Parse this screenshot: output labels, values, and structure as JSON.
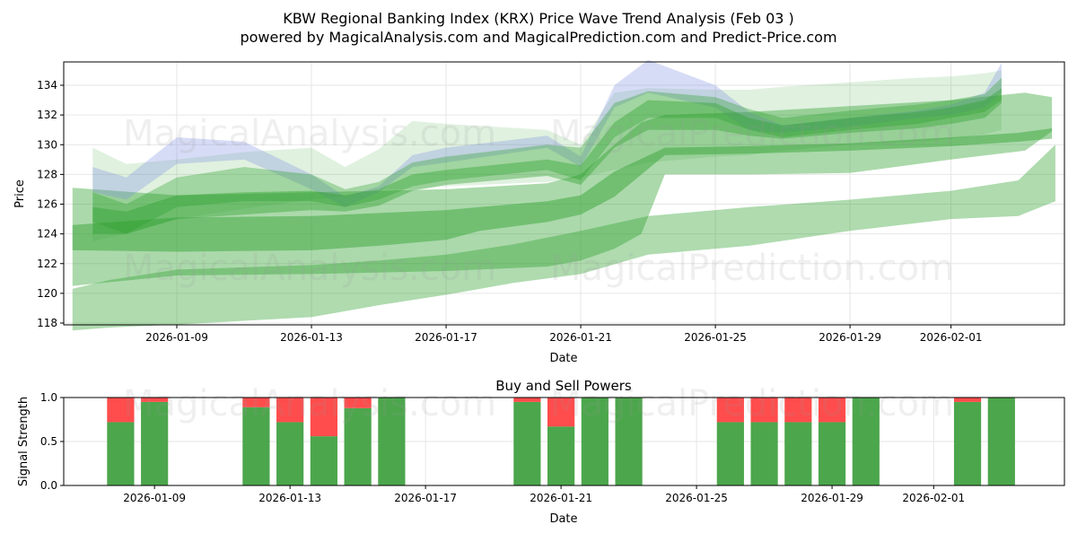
{
  "title_line1": "KBW Regional Banking Index (KRX) Price Wave Trend Analysis (Feb 03 )",
  "title_line2": "powered by MagicalAnalysis.com and MagicalPrediction.com and Predict-Price.com",
  "watermarks": [
    "MagicalAnalysis.com",
    "MagicalPrediction.com"
  ],
  "chart_data": [
    {
      "type": "area",
      "title": "",
      "xlabel": "Date",
      "ylabel": "Price",
      "x_unit": "days since 2026-01-05",
      "xlim": [
        0.64,
        30.37
      ],
      "ylim": [
        117.88,
        135.57
      ],
      "grid": true,
      "x_ticks": [
        {
          "v": 4,
          "label": "2026-01-09"
        },
        {
          "v": 8,
          "label": "2026-01-13"
        },
        {
          "v": 12,
          "label": "2026-01-17"
        },
        {
          "v": 16,
          "label": "2026-01-21"
        },
        {
          "v": 20,
          "label": "2026-01-25"
        },
        {
          "v": 24,
          "label": "2026-01-29"
        },
        {
          "v": 27,
          "label": "2026-02-01"
        }
      ],
      "y_ticks": [
        118,
        120,
        122,
        124,
        126,
        128,
        130,
        132,
        134
      ],
      "bands": [
        {
          "name": "lowest-band",
          "color": "#2ca02c",
          "opacity": 0.38,
          "x": [
            0.9,
            2,
            4,
            8,
            10,
            12,
            14,
            16,
            18,
            21,
            24,
            27,
            29,
            30.1
          ],
          "upper": [
            120.3,
            120.9,
            121.6,
            121.9,
            122.2,
            122.6,
            123.3,
            124.2,
            125.2,
            125.8,
            126.3,
            126.9,
            127.6,
            130.0
          ],
          "lower": [
            117.5,
            117.7,
            117.9,
            118.4,
            119.2,
            119.9,
            120.7,
            121.3,
            122.6,
            123.2,
            124.2,
            125.0,
            125.2,
            126.2
          ]
        },
        {
          "name": "step-band",
          "color": "#2ca02c",
          "opacity": 0.4,
          "x": [
            0.9,
            4,
            8,
            12,
            15,
            16,
            17,
            17.8,
            18.5,
            21,
            24,
            27,
            29.2,
            30
          ],
          "upper": [
            127.1,
            126.6,
            126.8,
            127.0,
            127.4,
            128.0,
            130.0,
            131.5,
            132.0,
            132.2,
            132.6,
            133.0,
            133.5,
            133.2
          ],
          "lower": [
            120.5,
            121.2,
            121.3,
            121.5,
            121.8,
            122.2,
            123.0,
            124.0,
            128.0,
            128.0,
            128.1,
            129.0,
            129.6,
            130.9
          ]
        },
        {
          "name": "mid-band",
          "color": "#2ca02c",
          "opacity": 0.45,
          "x": [
            0.9,
            4,
            8,
            10,
            12,
            13,
            15,
            16,
            17,
            18.5,
            21,
            24,
            27,
            29,
            30
          ],
          "upper": [
            124.6,
            125.1,
            125.2,
            125.4,
            125.6,
            125.8,
            126.2,
            126.6,
            128.2,
            129.8,
            129.9,
            130.1,
            130.5,
            130.8,
            131.1
          ],
          "lower": [
            122.9,
            122.8,
            122.9,
            123.2,
            123.6,
            124.2,
            124.8,
            125.3,
            126.5,
            129.3,
            129.4,
            129.6,
            129.9,
            130.2,
            130.4
          ]
        },
        {
          "name": "light-upper-band",
          "color": "#2ca02c",
          "opacity": 0.15,
          "x": [
            1.5,
            2.5,
            4,
            6,
            8,
            9,
            10,
            11,
            12,
            15,
            16,
            17,
            18,
            20,
            21,
            22,
            24,
            26,
            27,
            28,
            28.5
          ],
          "upper": [
            129.8,
            128.7,
            129.0,
            129.5,
            129.8,
            128.5,
            129.7,
            131.6,
            131.4,
            131.0,
            130.0,
            133.5,
            133.8,
            133.7,
            133.7,
            133.9,
            134.2,
            134.5,
            134.6,
            134.8,
            135.0
          ],
          "lower": [
            123.5,
            124.0,
            125.0,
            125.7,
            126.3,
            126.5,
            127.0,
            127.0,
            127.2,
            127.5,
            127.8,
            128.3,
            128.8,
            129.2,
            129.3,
            129.6,
            130.0,
            130.2,
            130.4,
            130.7,
            131.0
          ]
        },
        {
          "name": "blue-wave-band",
          "color": "#7b8ce0",
          "opacity": 0.3,
          "x": [
            1.5,
            2.5,
            4,
            6,
            8,
            9,
            10,
            11,
            12,
            15,
            16,
            17,
            18,
            20,
            21,
            22,
            24,
            26,
            27,
            28,
            28.5
          ],
          "upper": [
            128.5,
            127.8,
            130.5,
            130.2,
            128.0,
            126.5,
            127.2,
            129.3,
            129.8,
            130.6,
            129.2,
            134.0,
            135.7,
            134.0,
            132.2,
            131.3,
            131.8,
            132.3,
            132.7,
            133.5,
            135.5
          ],
          "lower": [
            126.8,
            126.3,
            128.7,
            129.0,
            127.0,
            125.8,
            126.8,
            128.5,
            128.8,
            129.8,
            128.5,
            132.5,
            133.5,
            132.5,
            131.0,
            130.8,
            131.2,
            131.8,
            132.0,
            132.5,
            133.5
          ]
        },
        {
          "name": "main-wave-band-1",
          "color": "#2ca02c",
          "opacity": 0.35,
          "x": [
            1.5,
            2.5,
            4,
            6,
            8,
            9,
            10,
            11,
            12,
            15,
            16,
            17,
            18,
            20,
            21,
            22,
            24,
            26,
            27,
            28,
            28.5
          ],
          "upper": [
            126.8,
            126.0,
            127.8,
            128.5,
            128.0,
            127.0,
            127.5,
            128.8,
            129.2,
            130.0,
            129.8,
            132.8,
            133.6,
            133.2,
            132.4,
            131.8,
            132.3,
            132.7,
            133.0,
            133.4,
            134.5
          ],
          "lower": [
            124.8,
            124.0,
            125.8,
            126.2,
            126.2,
            125.8,
            126.3,
            127.2,
            127.6,
            128.3,
            127.6,
            130.5,
            131.8,
            131.8,
            131.0,
            130.5,
            131.0,
            131.4,
            131.8,
            132.2,
            133.0
          ]
        },
        {
          "name": "main-wave-band-2",
          "color": "#2ca02c",
          "opacity": 0.4,
          "x": [
            1.5,
            2.5,
            4,
            6,
            8,
            9,
            10,
            11,
            12,
            15,
            16,
            17,
            18,
            20,
            21,
            22,
            24,
            26,
            27,
            28,
            28.5
          ],
          "upper": [
            125.8,
            125.5,
            126.6,
            126.8,
            126.9,
            126.6,
            127.0,
            128.0,
            128.3,
            129.0,
            128.6,
            131.5,
            133.0,
            132.8,
            131.8,
            131.3,
            131.8,
            132.2,
            132.5,
            133.0,
            133.8
          ],
          "lower": [
            124.0,
            124.0,
            125.0,
            125.3,
            125.6,
            125.5,
            125.9,
            126.9,
            127.3,
            127.9,
            127.3,
            129.8,
            131.0,
            131.0,
            130.6,
            130.4,
            130.8,
            131.1,
            131.4,
            131.8,
            132.8
          ]
        }
      ]
    },
    {
      "type": "bar",
      "title": "Buy and Sell Powers",
      "xlabel": "Date",
      "ylabel": "Signal Strength",
      "x_unit": "days since 2026-01-05",
      "xlim": [
        1.32,
        30.86
      ],
      "ylim": [
        0,
        1.0
      ],
      "grid": true,
      "x_ticks": [
        {
          "v": 4,
          "label": "2026-01-09"
        },
        {
          "v": 8,
          "label": "2026-01-13"
        },
        {
          "v": 12,
          "label": "2026-01-17"
        },
        {
          "v": 16,
          "label": "2026-01-21"
        },
        {
          "v": 20,
          "label": "2026-01-25"
        },
        {
          "v": 24,
          "label": "2026-01-29"
        },
        {
          "v": 27,
          "label": "2026-02-01"
        }
      ],
      "y_ticks": [
        {
          "v": 0,
          "label": "0.0"
        },
        {
          "v": 0.5,
          "label": "0.5"
        },
        {
          "v": 1,
          "label": "1.0"
        }
      ],
      "buy_color": "#4ca64c",
      "sell_color": "#ff4c4c",
      "series": [
        {
          "name": "Buy",
          "days": [
            3,
            4,
            7,
            8,
            9,
            10,
            11,
            15,
            16,
            17,
            18,
            21,
            22,
            23,
            24,
            25,
            28,
            29
          ],
          "values": [
            0.72,
            0.95,
            0.89,
            0.72,
            0.56,
            0.88,
            1.0,
            0.95,
            0.67,
            1.0,
            1.0,
            0.72,
            0.72,
            0.72,
            0.72,
            1.0,
            0.95,
            1.0
          ]
        },
        {
          "name": "Sell",
          "days": [
            3,
            4,
            7,
            8,
            9,
            10,
            11,
            15,
            16,
            17,
            18,
            21,
            22,
            23,
            24,
            25,
            28,
            29
          ],
          "values": [
            0.28,
            0.05,
            0.11,
            0.28,
            0.44,
            0.12,
            0.0,
            0.05,
            0.33,
            0.0,
            0.0,
            0.28,
            0.28,
            0.28,
            0.28,
            0.0,
            0.05,
            0.0
          ]
        }
      ]
    }
  ]
}
